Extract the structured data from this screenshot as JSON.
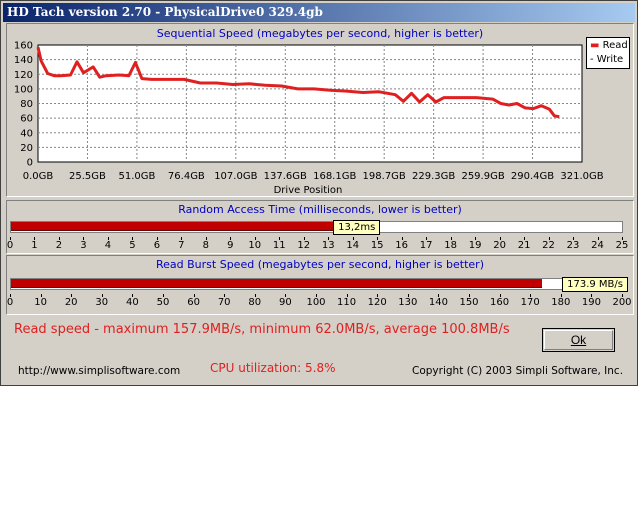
{
  "window": {
    "title": "HD Tach version 2.70 - PhysicalDrive0 329.4gb"
  },
  "sequential": {
    "title": "Sequential Speed (megabytes per second, higher is better)",
    "y_ticks": [
      "160",
      "140",
      "120",
      "100",
      "80",
      "60",
      "40",
      "20",
      "0"
    ],
    "x_ticks": [
      "0.0GB",
      "25.5GB",
      "51.0GB",
      "76.4GB",
      "107.0GB",
      "137.6GB",
      "168.1GB",
      "198.7GB",
      "229.3GB",
      "259.9GB",
      "290.4GB",
      "321.0GB"
    ],
    "xlabel": "Drive Position",
    "legend": {
      "read": "Read",
      "write": "Write"
    }
  },
  "chart_data": {
    "type": "line",
    "title": "Sequential Speed (megabytes per second, higher is better)",
    "xlabel": "Drive Position",
    "ylabel": "",
    "ylim": [
      0,
      160
    ],
    "xlim": [
      0,
      335
    ],
    "x_unit": "GB",
    "grid": true,
    "legend_position": "top-right",
    "series": [
      {
        "name": "Read",
        "color": "#e02020",
        "x": [
          0,
          2,
          6,
          10,
          14,
          20,
          24,
          28,
          34,
          38,
          42,
          50,
          56,
          60,
          64,
          70,
          80,
          90,
          100,
          110,
          120,
          130,
          140,
          150,
          160,
          170,
          180,
          190,
          200,
          210,
          220,
          225,
          230,
          235,
          240,
          245,
          250,
          255,
          260,
          270,
          280,
          285,
          290,
          295,
          300,
          305,
          310,
          315,
          318,
          321
        ],
        "y": [
          157,
          138,
          121,
          118,
          118,
          119,
          137,
          122,
          130,
          116,
          118,
          119,
          118,
          136,
          114,
          113,
          113,
          113,
          108,
          108,
          106,
          107,
          105,
          104,
          100,
          100,
          98,
          97,
          95,
          96,
          92,
          83,
          94,
          82,
          92,
          82,
          88,
          88,
          88,
          88,
          86,
          80,
          78,
          80,
          74,
          73,
          77,
          72,
          63,
          62
        ]
      },
      {
        "name": "Write",
        "color": "#000000",
        "x": [],
        "y": []
      }
    ]
  },
  "random_access": {
    "title": "Random Access Time (milliseconds, lower is better)",
    "value": 13.2,
    "value_label": "13,2ms",
    "max": 25,
    "ticks": [
      "0",
      "1",
      "2",
      "3",
      "4",
      "5",
      "6",
      "7",
      "8",
      "9",
      "10",
      "11",
      "12",
      "13",
      "14",
      "15",
      "16",
      "17",
      "18",
      "19",
      "20",
      "21",
      "22",
      "23",
      "24",
      "25"
    ]
  },
  "burst": {
    "title": "Read Burst Speed (megabytes per second, higher is better)",
    "value": 173.9,
    "value_label": "173.9 MB/s",
    "max": 200,
    "ticks": [
      "0",
      "10",
      "20",
      "30",
      "40",
      "50",
      "60",
      "70",
      "80",
      "90",
      "100",
      "110",
      "120",
      "130",
      "140",
      "150",
      "160",
      "170",
      "180",
      "190",
      "200"
    ]
  },
  "summary": {
    "read_speed": "Read speed - maximum 157.9MB/s, minimum 62.0MB/s, average 100.8MB/s",
    "cpu": "CPU utilization: 5.8%",
    "url": "http://www.simplisoftware.com",
    "copyright": "Copyright (C) 2003 Simpli Software, Inc.",
    "ok_label": "Ok"
  },
  "colors": {
    "title_start": "#0a246a",
    "title_end": "#a6caf0",
    "accent_red": "#e02020",
    "panel_title_blue": "#0000c0"
  }
}
